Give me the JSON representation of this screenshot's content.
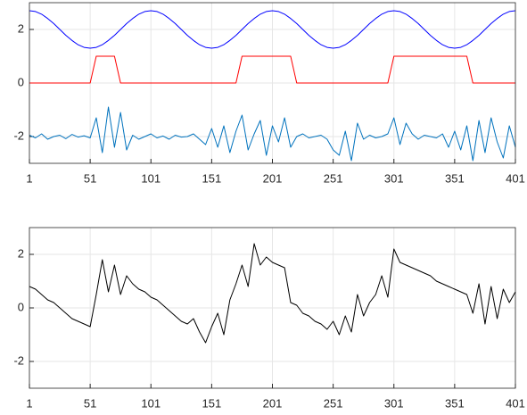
{
  "chart_data": [
    {
      "type": "line",
      "x": [
        1,
        6,
        11,
        16,
        21,
        26,
        31,
        36,
        41,
        46,
        51,
        56,
        61,
        66,
        71,
        76,
        81,
        86,
        91,
        96,
        101,
        106,
        111,
        116,
        121,
        126,
        131,
        136,
        141,
        146,
        151,
        156,
        161,
        166,
        171,
        176,
        181,
        186,
        191,
        196,
        201,
        206,
        211,
        216,
        221,
        226,
        231,
        236,
        241,
        246,
        251,
        256,
        261,
        266,
        271,
        276,
        281,
        286,
        291,
        296,
        301,
        306,
        311,
        316,
        321,
        326,
        331,
        336,
        341,
        346,
        351,
        356,
        361,
        366,
        371,
        376,
        381,
        386,
        391,
        396,
        401
      ],
      "xlim": [
        1,
        401
      ],
      "xticks": [
        1,
        51,
        101,
        151,
        201,
        251,
        301,
        351,
        401
      ],
      "ylim": [
        -3,
        3
      ],
      "yticks": [
        -2,
        0,
        2
      ],
      "grid": true,
      "series": [
        {
          "color": "#0000ff",
          "values": [
            2.7,
            2.67,
            2.57,
            2.41,
            2.22,
            2,
            1.78,
            1.59,
            1.43,
            1.33,
            1.3,
            1.33,
            1.43,
            1.59,
            1.78,
            2,
            2.22,
            2.41,
            2.57,
            2.67,
            2.7,
            2.67,
            2.57,
            2.41,
            2.22,
            2,
            1.78,
            1.59,
            1.43,
            1.33,
            1.3,
            1.33,
            1.43,
            1.59,
            1.78,
            2,
            2.22,
            2.41,
            2.57,
            2.67,
            2.7,
            2.67,
            2.57,
            2.41,
            2.22,
            2,
            1.78,
            1.59,
            1.43,
            1.33,
            1.3,
            1.33,
            1.43,
            1.59,
            1.78,
            2,
            2.22,
            2.41,
            2.57,
            2.67,
            2.7,
            2.67,
            2.57,
            2.41,
            2.22,
            2,
            1.78,
            1.59,
            1.43,
            1.33,
            1.3,
            1.33,
            1.43,
            1.59,
            1.78,
            2,
            2.22,
            2.41,
            2.57,
            2.67,
            2.7
          ]
        },
        {
          "color": "#ff0000",
          "values": [
            0,
            0,
            0,
            0,
            0,
            0,
            0,
            0,
            0,
            0,
            0,
            1,
            1,
            1,
            1,
            0,
            0,
            0,
            0,
            0,
            0,
            0,
            0,
            0,
            0,
            0,
            0,
            0,
            0,
            0,
            0,
            0,
            0,
            0,
            0,
            1,
            1,
            1,
            1,
            1,
            1,
            1,
            1,
            1,
            0,
            0,
            0,
            0,
            0,
            0,
            0,
            0,
            0,
            0,
            0,
            0,
            0,
            0,
            0,
            0,
            1,
            1,
            1,
            1,
            1,
            1,
            1,
            1,
            1,
            1,
            1,
            1,
            1,
            0,
            0,
            0,
            0,
            0,
            0,
            0,
            0
          ]
        },
        {
          "color": "#0072bd",
          "values": [
            -1.95,
            -2.05,
            -1.9,
            -2.1,
            -2.0,
            -1.95,
            -2.08,
            -1.92,
            -2.02,
            -1.97,
            -2.05,
            -1.3,
            -2.6,
            -0.9,
            -2.4,
            -1.1,
            -2.5,
            -1.95,
            -2.1,
            -2.0,
            -1.9,
            -2.05,
            -1.98,
            -2.1,
            -1.95,
            -2.02,
            -2.0,
            -1.9,
            -2.1,
            -2.3,
            -1.7,
            -2.4,
            -1.6,
            -2.6,
            -1.8,
            -1.2,
            -2.5,
            -1.9,
            -1.4,
            -2.7,
            -1.6,
            -2.2,
            -1.3,
            -2.4,
            -2.0,
            -1.9,
            -2.05,
            -2.0,
            -1.95,
            -2.1,
            -2.5,
            -2.7,
            -1.8,
            -2.9,
            -1.5,
            -2.1,
            -1.95,
            -2.05,
            -2.0,
            -1.9,
            -1.3,
            -2.3,
            -1.5,
            -1.9,
            -2.1,
            -1.95,
            -2.0,
            -2.05,
            -1.9,
            -2.4,
            -1.8,
            -2.5,
            -1.6,
            -2.9,
            -1.4,
            -2.6,
            -1.3,
            -2.2,
            -2.8,
            -1.6,
            -2.4
          ]
        }
      ]
    },
    {
      "type": "line",
      "x": [
        1,
        6,
        11,
        16,
        21,
        26,
        31,
        36,
        41,
        46,
        51,
        56,
        61,
        66,
        71,
        76,
        81,
        86,
        91,
        96,
        101,
        106,
        111,
        116,
        121,
        126,
        131,
        136,
        141,
        146,
        151,
        156,
        161,
        166,
        171,
        176,
        181,
        186,
        191,
        196,
        201,
        206,
        211,
        216,
        221,
        226,
        231,
        236,
        241,
        246,
        251,
        256,
        261,
        266,
        271,
        276,
        281,
        286,
        291,
        296,
        301,
        306,
        311,
        316,
        321,
        326,
        331,
        336,
        341,
        346,
        351,
        356,
        361,
        366,
        371,
        376,
        381,
        386,
        391,
        396,
        401
      ],
      "xlim": [
        1,
        401
      ],
      "xticks": [
        1,
        51,
        101,
        151,
        201,
        251,
        301,
        351,
        401
      ],
      "ylim": [
        -3,
        3
      ],
      "yticks": [
        -2,
        0,
        2
      ],
      "grid": true,
      "series": [
        {
          "color": "#000000",
          "values": [
            0.8,
            0.7,
            0.5,
            0.3,
            0.2,
            0.0,
            -0.2,
            -0.4,
            -0.5,
            -0.6,
            -0.7,
            0.5,
            1.8,
            0.6,
            1.6,
            0.5,
            1.2,
            0.9,
            0.7,
            0.6,
            0.4,
            0.3,
            0.1,
            -0.1,
            -0.3,
            -0.5,
            -0.6,
            -0.4,
            -0.9,
            -1.3,
            -0.7,
            -0.2,
            -1.0,
            0.3,
            0.9,
            1.6,
            0.8,
            2.4,
            1.6,
            1.9,
            1.7,
            1.6,
            1.5,
            0.2,
            0.1,
            -0.2,
            -0.3,
            -0.5,
            -0.6,
            -0.8,
            -0.5,
            -1.0,
            -0.3,
            -0.9,
            0.5,
            -0.3,
            0.2,
            0.5,
            1.2,
            0.4,
            2.2,
            1.7,
            1.6,
            1.5,
            1.4,
            1.3,
            1.2,
            1.0,
            0.9,
            0.8,
            0.7,
            0.6,
            0.5,
            -0.2,
            0.9,
            -0.6,
            0.8,
            -0.4,
            0.7,
            0.2,
            0.6
          ]
        }
      ]
    }
  ]
}
